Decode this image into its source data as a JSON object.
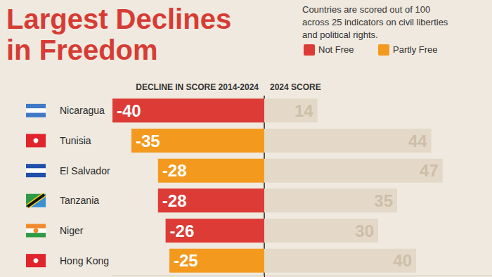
{
  "chart_data": {
    "type": "bar",
    "orientation": "horizontal",
    "title": "Largest Declines\nin Freedom",
    "subtitle": "Countries are scored out of 100\nacross 25 indicators on civil liberties\nand political rights.",
    "categories": [
      "Nicaragua",
      "Tunisia",
      "El Salvador",
      "Tanzania",
      "Niger",
      "Hong Kong"
    ],
    "series": [
      {
        "name": "DECLINE IN SCORE 2014-2024",
        "values": [
          -40,
          -35,
          -28,
          -28,
          -26,
          -25
        ],
        "status": [
          "Not Free",
          "Partly Free",
          "Partly Free",
          "Not Free",
          "Not Free",
          "Partly Free"
        ]
      },
      {
        "name": "2024 SCORE",
        "values": [
          14,
          44,
          47,
          35,
          30,
          40
        ],
        "color": "#e4d9c9"
      }
    ],
    "color_key": [
      {
        "label": "Not Free",
        "color": "#dc3b36"
      },
      {
        "label": "Partly Free",
        "color": "#f39a1e"
      }
    ],
    "xlim": [
      -40,
      60
    ],
    "xticks": [
      0
    ],
    "grid": true,
    "data_labels": true,
    "tick_labels": "y"
  }
}
